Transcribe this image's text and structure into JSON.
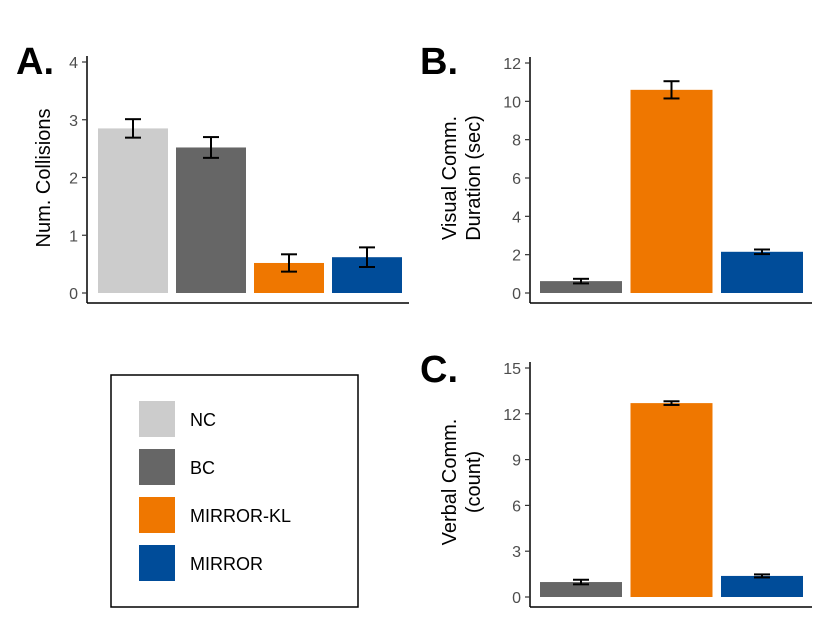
{
  "colors": {
    "NC": "#cccccc",
    "BC": "#666666",
    "MIRROR-KL": "#ef7700",
    "MIRROR": "#004c99"
  },
  "legend": {
    "items": [
      "NC",
      "BC",
      "MIRROR-KL",
      "MIRROR"
    ]
  },
  "chart_data": [
    {
      "panel": "A.",
      "type": "bar",
      "ylabel": "Num. Collisions",
      "categories": [
        "NC",
        "BC",
        "MIRROR-KL",
        "MIRROR"
      ],
      "values": [
        2.85,
        2.52,
        0.52,
        0.62
      ],
      "errors": [
        0.16,
        0.18,
        0.15,
        0.17
      ],
      "ylim": [
        0,
        4
      ],
      "yticks": [
        0,
        1,
        2,
        3,
        4
      ]
    },
    {
      "panel": "B.",
      "type": "bar",
      "ylabel": [
        "Visual Comm.",
        "Duration (sec)"
      ],
      "categories": [
        "BC",
        "MIRROR-KL",
        "MIRROR"
      ],
      "values": [
        0.62,
        10.6,
        2.15
      ],
      "errors": [
        0.12,
        0.45,
        0.12
      ],
      "ylim": [
        0,
        12
      ],
      "yticks": [
        0,
        2,
        4,
        6,
        8,
        10,
        12
      ]
    },
    {
      "panel": "C.",
      "type": "bar",
      "ylabel": [
        "Verbal Comm.",
        "(count)"
      ],
      "categories": [
        "BC",
        "MIRROR-KL",
        "MIRROR"
      ],
      "values": [
        0.98,
        12.7,
        1.38
      ],
      "errors": [
        0.15,
        0.12,
        0.1
      ],
      "ylim": [
        0,
        15
      ],
      "yticks": [
        0,
        3,
        6,
        9,
        12,
        15
      ]
    }
  ]
}
